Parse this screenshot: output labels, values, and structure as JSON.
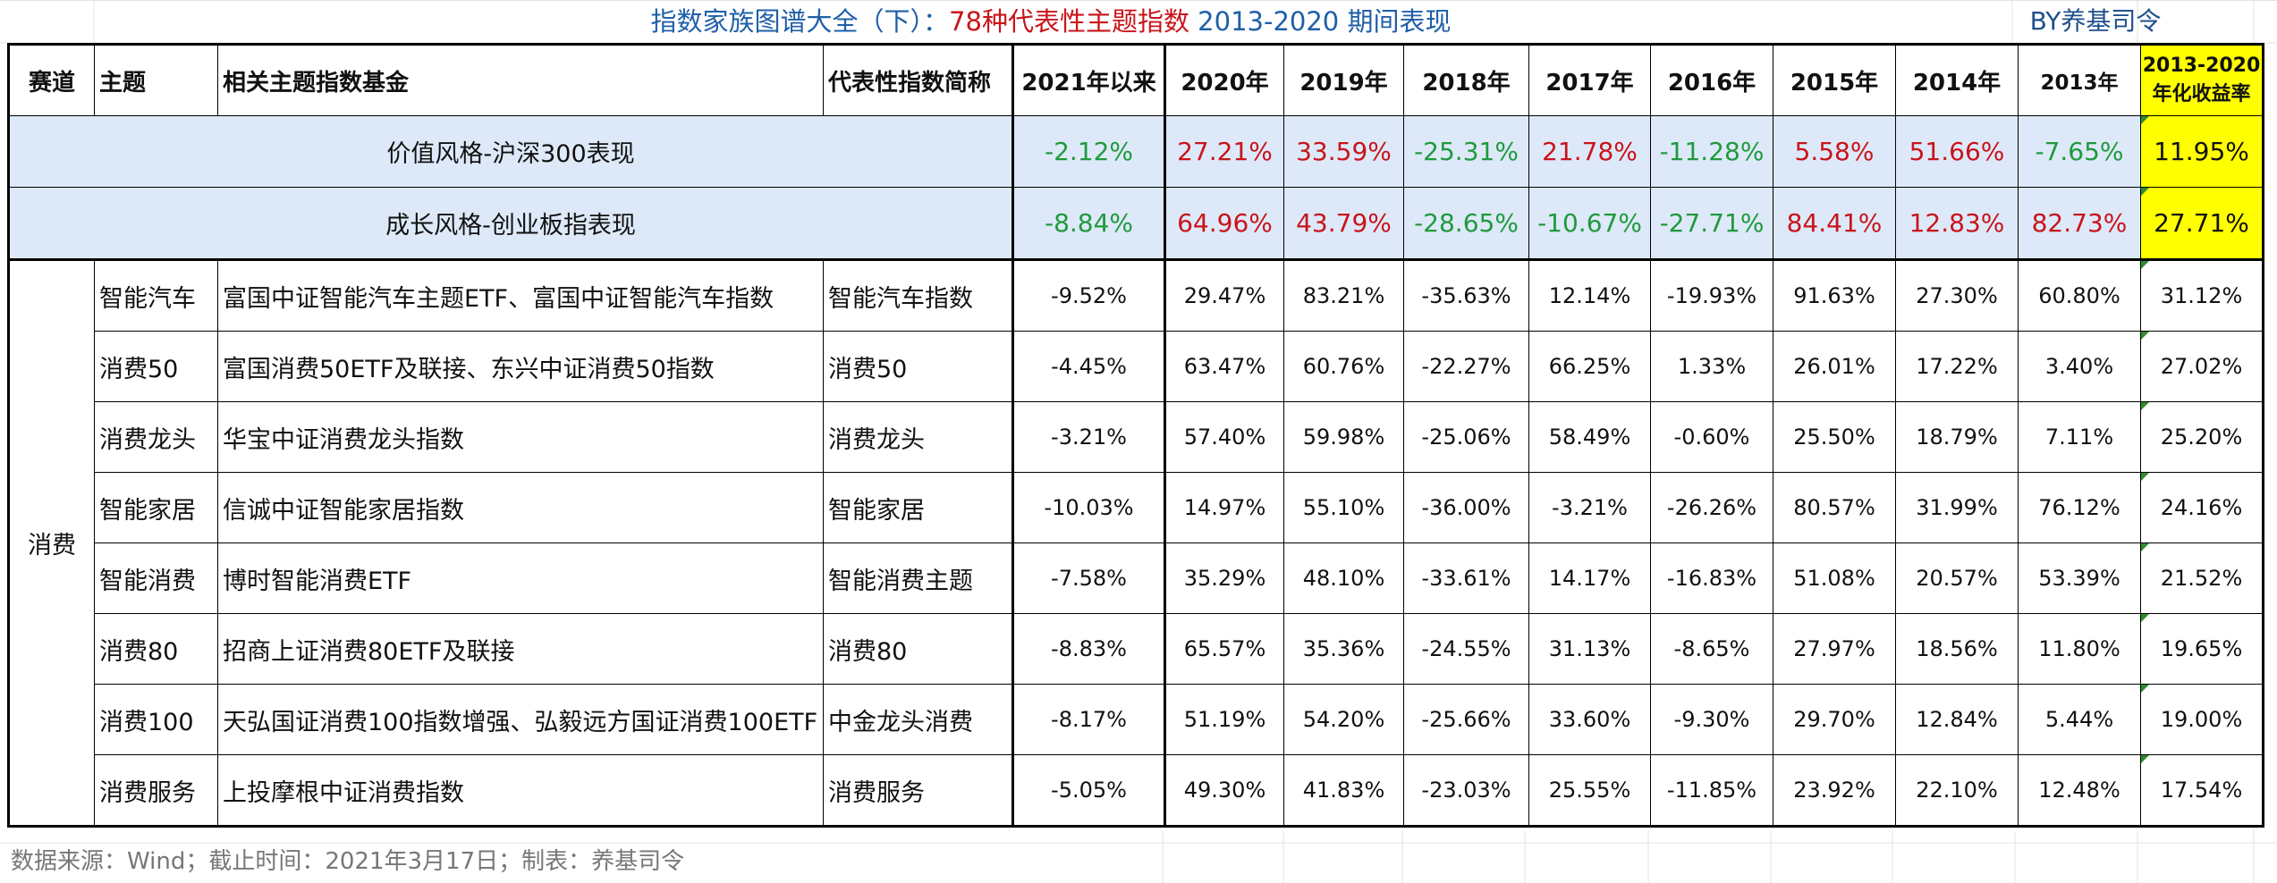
{
  "title": {
    "part1": "指数家族图谱大全（下）：",
    "part2": "78种代表性主题指数",
    "part3": " 2013-2020 期间表现"
  },
  "byline": "BY养基司令",
  "headers": {
    "track": "赛道",
    "theme": "主题",
    "funds": "相关主题指数基金",
    "index": "代表性指数简称",
    "y2021": "2021年以来",
    "y2020": "2020年",
    "y2019": "2019年",
    "y2018": "2018年",
    "y2017": "2017年",
    "y2016": "2016年",
    "y2015": "2015年",
    "y2014": "2014年",
    "y2013": "2013年",
    "annual_line1": "2013-2020",
    "annual_line2": "年化收益率"
  },
  "style_rows": [
    {
      "label": "价值风格-沪深300表现",
      "values": [
        "-2.12%",
        "27.21%",
        "33.59%",
        "-25.31%",
        "21.78%",
        "-11.28%",
        "5.58%",
        "51.66%",
        "-7.65%"
      ],
      "annual": "11.95%"
    },
    {
      "label": "成长风格-创业板指表现",
      "values": [
        "-8.84%",
        "64.96%",
        "43.79%",
        "-28.65%",
        "-10.67%",
        "-27.71%",
        "84.41%",
        "12.83%",
        "82.73%"
      ],
      "annual": "27.71%"
    }
  ],
  "category": "消费",
  "rows": [
    {
      "theme": "智能汽车",
      "funds": "富国中证智能汽车主题ETF、富国中证智能汽车指数",
      "index": "智能汽车指数",
      "values": [
        "-9.52%",
        "29.47%",
        "83.21%",
        "-35.63%",
        "12.14%",
        "-19.93%",
        "91.63%",
        "27.30%",
        "60.80%"
      ],
      "annual": "31.12%"
    },
    {
      "theme": "消费50",
      "funds": "富国消费50ETF及联接、东兴中证消费50指数",
      "index": "消费50",
      "values": [
        "-4.45%",
        "63.47%",
        "60.76%",
        "-22.27%",
        "66.25%",
        "1.33%",
        "26.01%",
        "17.22%",
        "3.40%"
      ],
      "annual": "27.02%"
    },
    {
      "theme": "消费龙头",
      "funds": "华宝中证消费龙头指数",
      "index": "消费龙头",
      "values": [
        "-3.21%",
        "57.40%",
        "59.98%",
        "-25.06%",
        "58.49%",
        "-0.60%",
        "25.50%",
        "18.79%",
        "7.11%"
      ],
      "annual": "25.20%"
    },
    {
      "theme": "智能家居",
      "funds": "信诚中证智能家居指数",
      "index": "智能家居",
      "values": [
        "-10.03%",
        "14.97%",
        "55.10%",
        "-36.00%",
        "-3.21%",
        "-26.26%",
        "80.57%",
        "31.99%",
        "76.12%"
      ],
      "annual": "24.16%"
    },
    {
      "theme": "智能消费",
      "funds": "博时智能消费ETF",
      "index": "智能消费主题",
      "values": [
        "-7.58%",
        "35.29%",
        "48.10%",
        "-33.61%",
        "14.17%",
        "-16.83%",
        "51.08%",
        "20.57%",
        "53.39%"
      ],
      "annual": "21.52%"
    },
    {
      "theme": "消费80",
      "funds": "招商上证消费80ETF及联接",
      "index": "消费80",
      "values": [
        "-8.83%",
        "65.57%",
        "35.36%",
        "-24.55%",
        "31.13%",
        "-8.65%",
        "27.97%",
        "18.56%",
        "11.80%"
      ],
      "annual": "19.65%"
    },
    {
      "theme": "消费100",
      "funds": "天弘国证消费100指数增强、弘毅远方国证消费100ETF",
      "index": "中金龙头消费",
      "values": [
        "-8.17%",
        "51.19%",
        "54.20%",
        "-25.66%",
        "33.60%",
        "-9.30%",
        "29.70%",
        "12.84%",
        "5.44%"
      ],
      "annual": "19.00%"
    },
    {
      "theme": "消费服务",
      "funds": "上投摩根中证消费指数",
      "index": "消费服务",
      "values": [
        "-5.05%",
        "49.30%",
        "41.83%",
        "-23.03%",
        "25.55%",
        "-11.85%",
        "23.92%",
        "22.10%",
        "12.48%"
      ],
      "annual": "17.54%"
    }
  ],
  "footer": "数据来源：Wind；截止时间：2021年3月17日；制表：养基司令",
  "colors": {
    "positive": "#c9141a",
    "negative": "#1f9a3c",
    "highlight": "#ffff00",
    "style_row_bg": "#dde9f8",
    "title_blue": "#1f5fa8",
    "title_red": "#c9141a"
  }
}
